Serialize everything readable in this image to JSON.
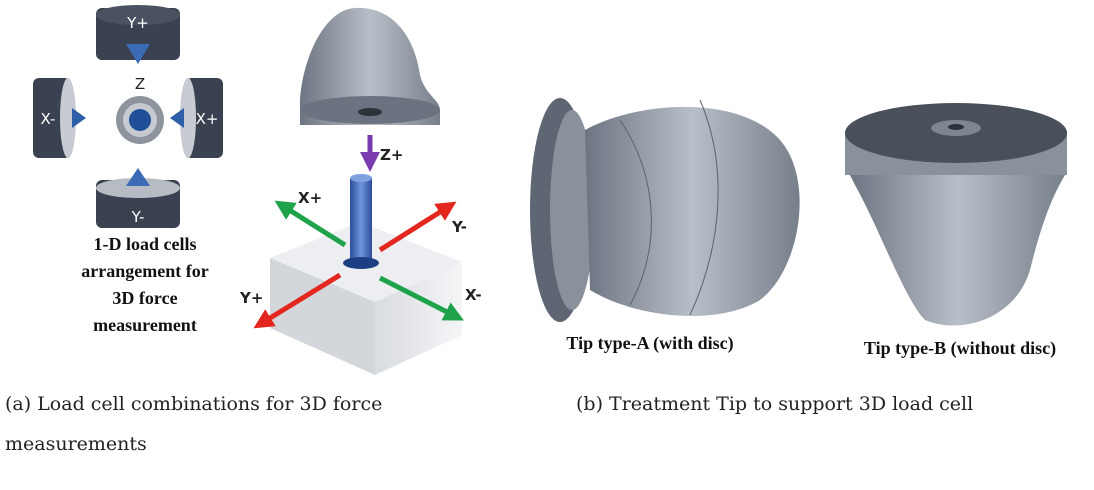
{
  "panel_a": {
    "load_cells": {
      "top": "Y+",
      "left": "X-",
      "center": "Z",
      "right": "X+",
      "bottom": "Y-"
    },
    "description_lines": [
      "1-D load cells",
      "arrangement for",
      "3D force",
      "measurement"
    ],
    "setup_labels": {
      "z_plus": "Z+",
      "x_plus": "X+",
      "y_minus": "Y-",
      "y_plus": "Y+",
      "x_minus": "X-"
    },
    "caption": "(a) Load cell combinations for 3D force measurements"
  },
  "panel_b": {
    "tip_a_label": "Tip type-A (with disc)",
    "tip_b_label": "Tip type-B (without disc)",
    "caption": "(b) Treatment Tip to support 3D load cell"
  }
}
